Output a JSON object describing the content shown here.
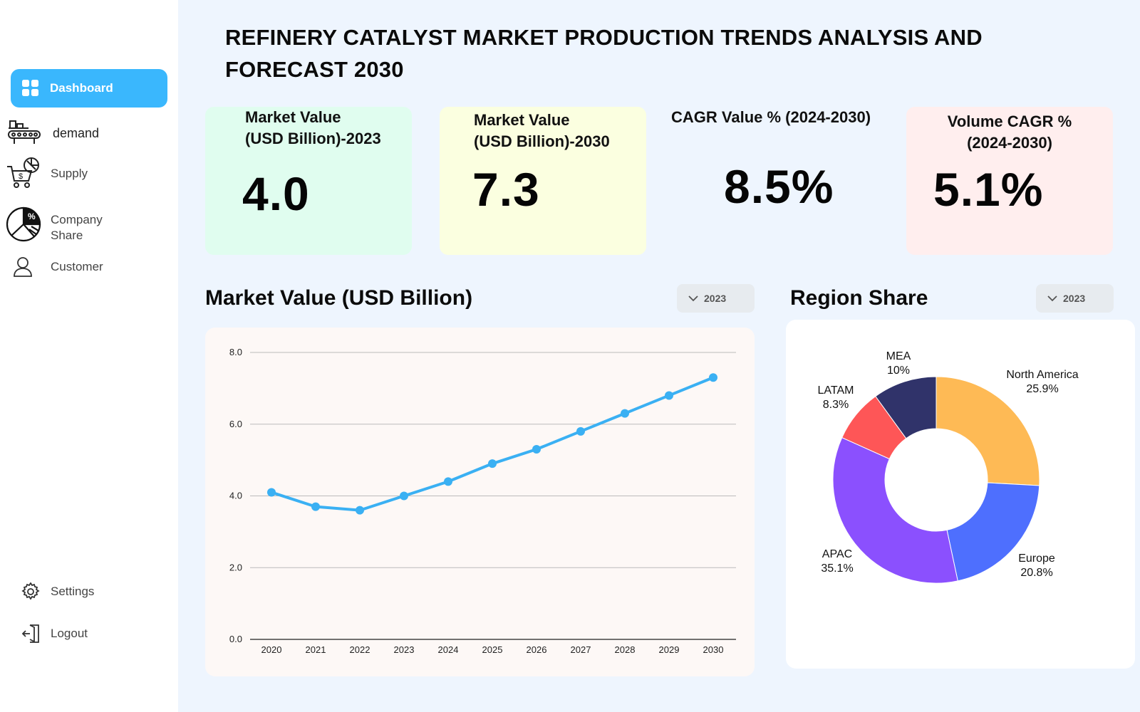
{
  "sidebar": {
    "items": [
      {
        "label": "Dashboard",
        "icon": "grid-icon",
        "active": true
      },
      {
        "label": "demand",
        "icon": "factory-conveyor-icon"
      },
      {
        "label": "Supply",
        "icon": "cart-money-icon"
      },
      {
        "label": "Company\nShare",
        "icon": "pie-percent-icon"
      },
      {
        "label": "Customer",
        "icon": "user-icon"
      }
    ],
    "bottom": [
      {
        "label": "Settings",
        "icon": "gear-icon"
      },
      {
        "label": "Logout",
        "icon": "logout-icon"
      }
    ]
  },
  "header": {
    "title": "REFINERY CATALYST  MARKET PRODUCTION TRENDS ANALYSIS AND FORECAST 2030"
  },
  "kpis": [
    {
      "label": "Market Value\n(USD Billion)-2023",
      "value": "4.0",
      "color": "#e0fdef"
    },
    {
      "label": "Market Value\n(USD Billion)-2030",
      "value": "7.3",
      "color": "#fbffe0"
    },
    {
      "label": "CAGR  Value % (2024-2030)",
      "value": "8.5%",
      "color": "#eef5fe"
    },
    {
      "label": "Volume CAGR  %\n(2024-2030)",
      "value": "5.1%",
      "color": "#ffeeee"
    }
  ],
  "line_section": {
    "title": "Market Value (USD Billion)",
    "dropdown": "2023"
  },
  "donut_section": {
    "title": "Region Share",
    "dropdown": "2023"
  },
  "chart_data": [
    {
      "type": "line",
      "x": [
        "2020",
        "2021",
        "2022",
        "2023",
        "2024",
        "2025",
        "2026",
        "2027",
        "2028",
        "2029",
        "2030"
      ],
      "series": [
        {
          "values": [
            4.1,
            3.7,
            3.6,
            4.0,
            4.4,
            4.9,
            5.3,
            5.8,
            6.3,
            6.8,
            7.3
          ],
          "color": "#3ab0f3"
        }
      ],
      "yticks": [
        "0.0",
        "2.0",
        "4.0",
        "6.0",
        "8.0"
      ],
      "ylim": [
        0,
        8
      ],
      "grid": true
    },
    {
      "type": "pie",
      "donut": true,
      "slices": [
        {
          "name": "North America",
          "pct": "25.9%",
          "value": 25.9,
          "color": "#feba55"
        },
        {
          "name": "Europe",
          "pct": "20.8%",
          "value": 20.8,
          "color": "#4e6ffe"
        },
        {
          "name": "APAC",
          "pct": "35.1%",
          "value": 35.1,
          "color": "#8b50fe"
        },
        {
          "name": "LATAM",
          "pct": "8.3%",
          "value": 8.3,
          "color": "#fe5657"
        },
        {
          "name": "MEA",
          "pct": "10%",
          "value": 10,
          "color": "#30336a"
        }
      ]
    }
  ]
}
